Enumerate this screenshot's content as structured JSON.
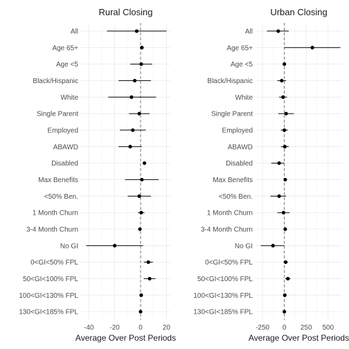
{
  "chart_data": [
    {
      "type": "scatter",
      "title": "Rural Closing",
      "xlabel": "Average Over Post Periods",
      "ylabel": "",
      "xlim": [
        -46,
        23
      ],
      "xticks": [
        -40,
        -20,
        0,
        20
      ],
      "reference_line_x": 0,
      "grid": true,
      "categories": [
        "All",
        "Age 65+",
        "Age <5",
        "Black/Hispanic",
        "White",
        "Single Parent",
        "Employed",
        "ABAWD",
        "Disabled",
        "Max Benefits",
        "<50% Ben.",
        "1 Month Churn",
        "3-4 Month Churn",
        "No GI",
        "0<GI<50% FPL",
        "50<GI<100% FPL",
        "100<GI<130% FPL",
        "130<GI<185% FPL"
      ],
      "series": [
        {
          "estimate": [
            -3,
            1,
            0.5,
            -4.5,
            -7,
            -1,
            -6,
            -8,
            3,
            1,
            -1,
            0.5,
            -0.5,
            -20,
            6,
            7,
            0.5,
            0
          ],
          "lower": [
            -26,
            -0.5,
            -8,
            -17,
            -25,
            -9,
            -16,
            -17,
            2,
            -12,
            -10,
            -2,
            -1,
            -42,
            2.5,
            2.5,
            -0.5,
            -1
          ],
          "upper": [
            20,
            2.5,
            9,
            8,
            12,
            7,
            4,
            1,
            4,
            14,
            8,
            3,
            0,
            2,
            9.5,
            11.5,
            1.5,
            1
          ]
        }
      ]
    },
    {
      "type": "scatter",
      "title": "Urban Closing",
      "xlabel": "Average Over Post Periods",
      "ylabel": "",
      "xlim": [
        -330,
        660
      ],
      "xticks": [
        -250,
        0,
        250,
        500
      ],
      "reference_line_x": 0,
      "grid": true,
      "categories": [
        "All",
        "Age 65+",
        "Age <5",
        "Black/Hispanic",
        "White",
        "Single Parent",
        "Employed",
        "ABAWD",
        "Disabled",
        "Max Benefits",
        "<50% Ben.",
        "1 Month Churn",
        "3-4 Month Churn",
        "No GI",
        "0<GI<50% FPL",
        "50<GI<100% FPL",
        "100<GI<130% FPL",
        "130<GI<185% FPL"
      ],
      "series": [
        {
          "estimate": [
            -70,
            320,
            0,
            -30,
            -15,
            20,
            0,
            5,
            -60,
            10,
            -60,
            -10,
            10,
            -130,
            15,
            40,
            5,
            0
          ],
          "lower": [
            -200,
            0,
            -10,
            -80,
            -60,
            -70,
            -40,
            -40,
            -150,
            0,
            -160,
            -80,
            0,
            -270,
            -10,
            10,
            -5,
            -5
          ],
          "upper": [
            50,
            640,
            10,
            20,
            30,
            110,
            40,
            50,
            0,
            20,
            20,
            60,
            20,
            0,
            40,
            70,
            15,
            5
          ]
        }
      ]
    }
  ]
}
